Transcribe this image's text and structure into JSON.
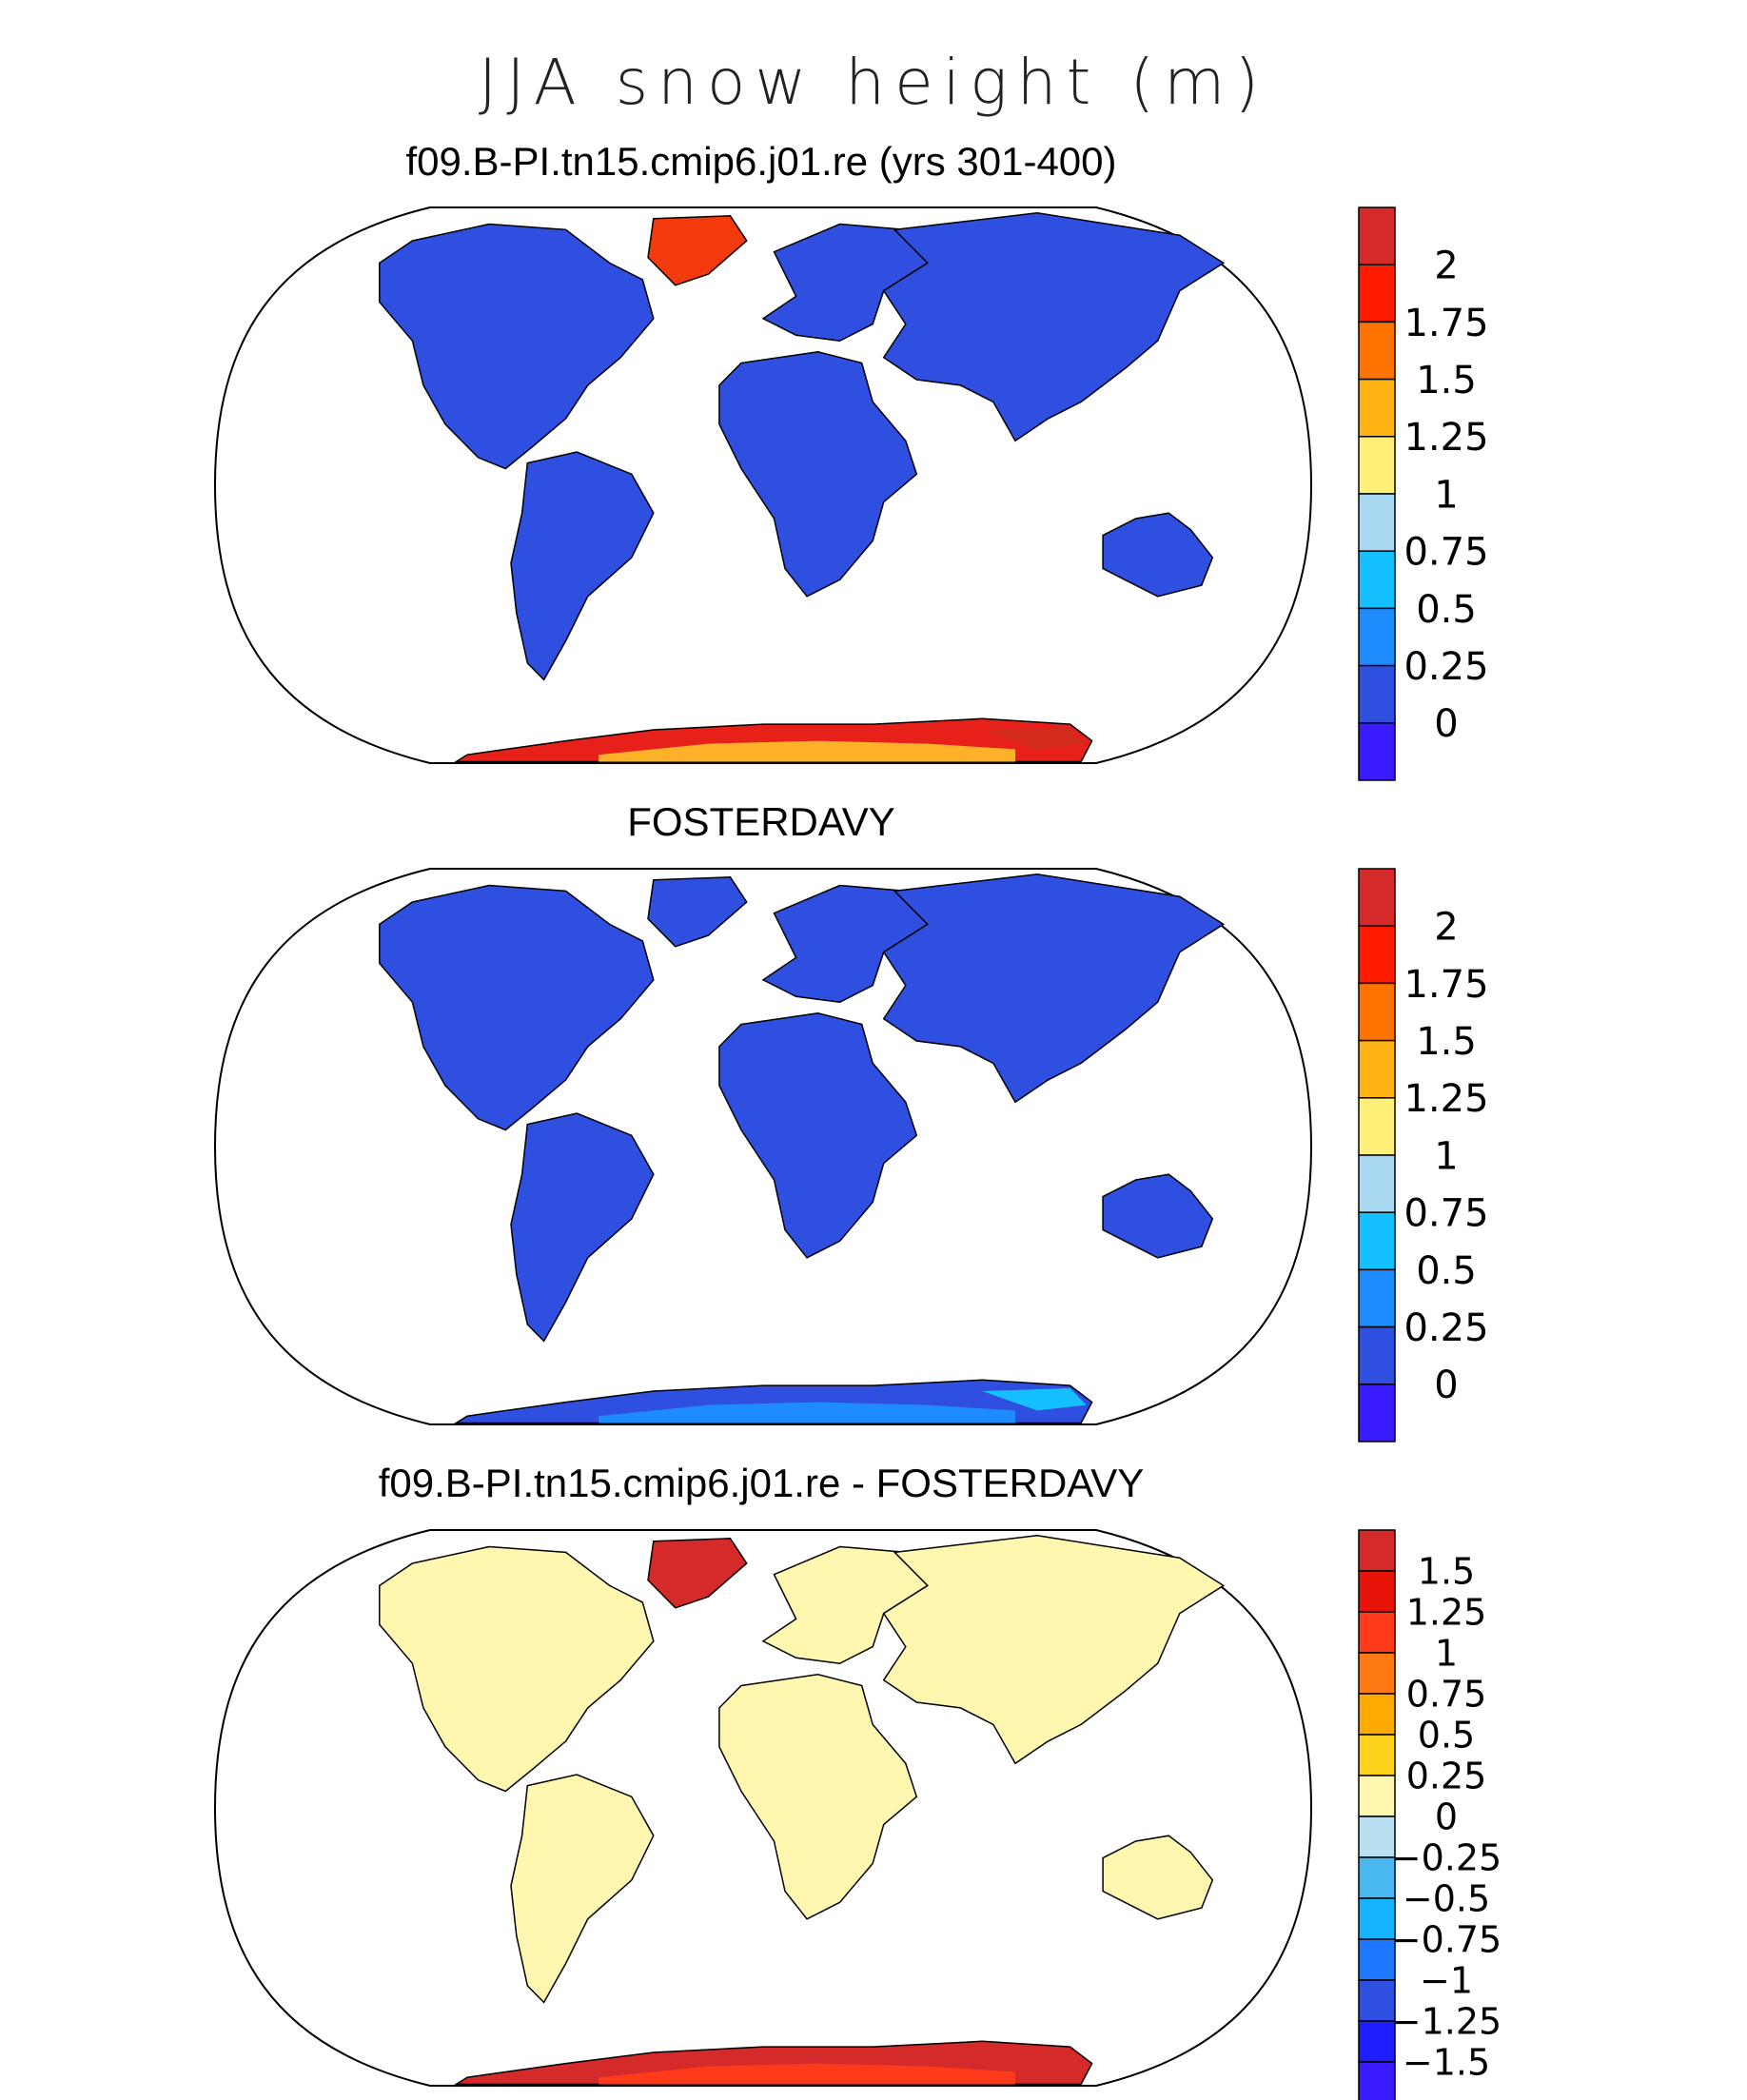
{
  "figure": {
    "title": "JJA snow height (m)"
  },
  "panels": [
    {
      "title": "f09.B-PI.tn15.cmip6.j01.re (yrs 301-400)",
      "land_color": "#2f4fe0",
      "greenland_color": "#f23a0c",
      "antarctica_colors": [
        "#e8201a",
        "#ffb12a",
        "#d42a1e"
      ],
      "colorbar": {
        "labels": [
          "2",
          "1.75",
          "1.5",
          "1.25",
          "1",
          "0.75",
          "0.5",
          "0.25",
          "0"
        ],
        "colors": [
          "#d42a2a",
          "#ff1a00",
          "#ff7300",
          "#ffb314",
          "#fff07a",
          "#a8d8f0",
          "#14c0ff",
          "#1e8cff",
          "#2f4fe0",
          "#3a1aff"
        ]
      }
    },
    {
      "title": "FOSTERDAVY",
      "land_color": "#2f4fe0",
      "greenland_color": "#2f4fe0",
      "antarctica_colors": [
        "#2f4fe0",
        "#1e8cff",
        "#14c0ff"
      ],
      "colorbar": {
        "labels": [
          "2",
          "1.75",
          "1.5",
          "1.25",
          "1",
          "0.75",
          "0.5",
          "0.25",
          "0"
        ],
        "colors": [
          "#d42a2a",
          "#ff1a00",
          "#ff7300",
          "#ffb314",
          "#fff07a",
          "#a8d8f0",
          "#14c0ff",
          "#1e8cff",
          "#2f4fe0",
          "#3a1aff"
        ]
      }
    },
    {
      "title": "f09.B-PI.tn15.cmip6.j01.re - FOSTERDAVY",
      "land_color": "#fff7b0",
      "greenland_color": "#d42a2a",
      "antarctica_colors": [
        "#d42a2a",
        "#ff3a1a",
        "#d42a2a"
      ],
      "colorbar": {
        "labels": [
          "1.5",
          "1.25",
          "1",
          "0.75",
          "0.5",
          "0.25",
          "0",
          "−0.25",
          "−0.5",
          "−0.75",
          "−1",
          "−1.25",
          "−1.5"
        ],
        "colors": [
          "#d42a2a",
          "#e8140a",
          "#ff3a1a",
          "#ff7a14",
          "#ffaa00",
          "#ffd21e",
          "#fff7b0",
          "#b8e0f0",
          "#4ab8f0",
          "#14b4ff",
          "#1e78ff",
          "#2f4fe0",
          "#1e1eff",
          "#3a1aff"
        ]
      }
    }
  ]
}
